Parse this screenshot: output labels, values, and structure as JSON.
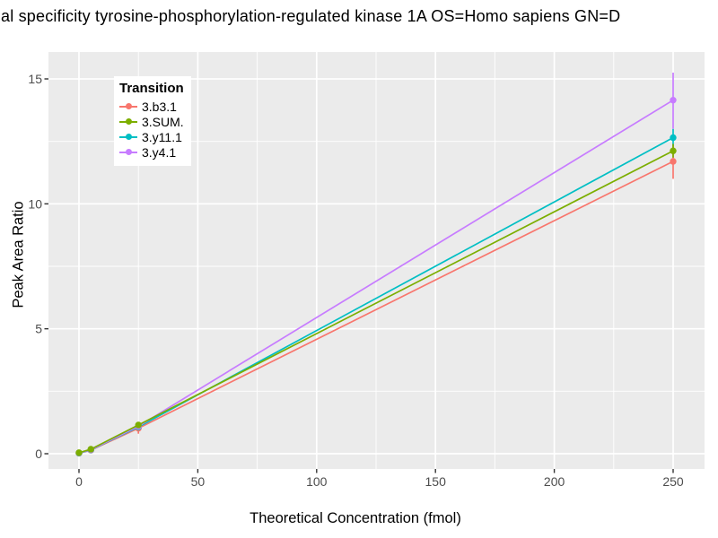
{
  "colors": {
    "panel_background": "#EBEBEB",
    "grid_line": "#FFFFFF",
    "tick_label": "#4D4D4D",
    "tick_mark": "#333333",
    "title_text": "#000000"
  },
  "chart_data": {
    "type": "line",
    "title": "al specificity tyrosine-phosphorylation-regulated kinase 1A OS=Homo sapiens GN=D",
    "xlabel": "Theoretical Concentration (fmol)",
    "ylabel": "Peak Area Ratio",
    "xlim": [
      -12.8,
      263.2
    ],
    "ylim": [
      -0.65,
      16.08
    ],
    "x_ticks": [
      0,
      50,
      100,
      150,
      200,
      250
    ],
    "x_minor_ticks": [
      25,
      75,
      125,
      175,
      225
    ],
    "y_ticks": [
      0,
      5,
      10,
      15
    ],
    "y_minor_ticks": [
      2.5,
      7.5,
      12.5
    ],
    "grid": "on",
    "legend": {
      "title": "Transition",
      "position": "inside-top-left"
    },
    "series": [
      {
        "name": "3.b3.1",
        "color": "#F8766D",
        "z": 1,
        "points": [
          [
            0,
            0.02
          ],
          [
            5,
            0.14
          ],
          [
            25,
            1.02
          ],
          [
            250,
            11.7
          ]
        ],
        "error_bars": [
          {
            "x": 25,
            "low": 0.8,
            "high": 1.2
          },
          {
            "x": 250,
            "low": 11.0,
            "high": 12.35
          }
        ]
      },
      {
        "name": "3.SUM.",
        "color": "#7CAE00",
        "z": 4,
        "points": [
          [
            0,
            0.04
          ],
          [
            5,
            0.18
          ],
          [
            25,
            1.15
          ],
          [
            250,
            12.12
          ]
        ],
        "error_bars": [
          {
            "x": 250,
            "low": 11.85,
            "high": 12.4
          }
        ]
      },
      {
        "name": "3.y11.1",
        "color": "#00BFC4",
        "z": 2,
        "points": [
          [
            0,
            0.02
          ],
          [
            5,
            0.15
          ],
          [
            25,
            1.07
          ],
          [
            250,
            12.65
          ]
        ],
        "error_bars": [
          {
            "x": 250,
            "low": 12.3,
            "high": 13.0
          }
        ]
      },
      {
        "name": "3.y4.1",
        "color": "#C77CFF",
        "z": 3,
        "points": [
          [
            0,
            0.03
          ],
          [
            5,
            0.16
          ],
          [
            25,
            1.1
          ],
          [
            250,
            14.15
          ]
        ],
        "error_bars": [
          {
            "x": 250,
            "low": 13.0,
            "high": 15.25
          }
        ]
      }
    ]
  }
}
